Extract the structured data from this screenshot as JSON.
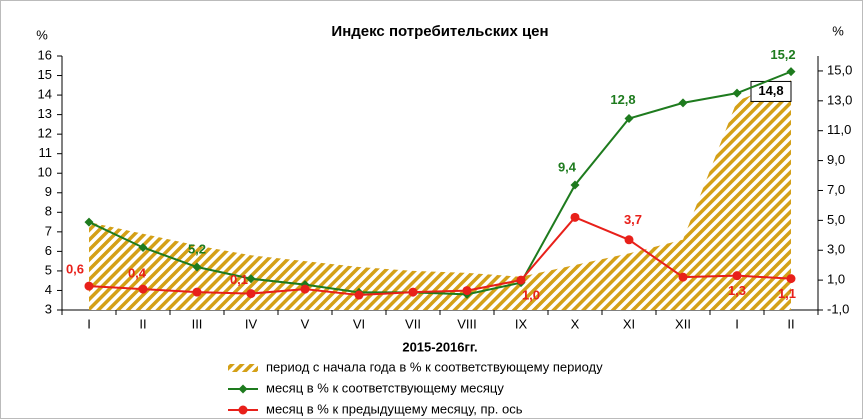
{
  "chart_data": {
    "type": "line",
    "title": "Индекс потребительских цен",
    "y_label": "%",
    "y2_label": "%",
    "x_label": "2015-2016гг.",
    "categories": [
      "I",
      "II",
      "III",
      "IV",
      "V",
      "VI",
      "VII",
      "VIII",
      "IX",
      "X",
      "XI",
      "XII",
      "I",
      "II"
    ],
    "ylim": [
      3,
      16
    ],
    "yticks": [
      3,
      4,
      5,
      6,
      7,
      8,
      9,
      10,
      11,
      12,
      13,
      14,
      15,
      16
    ],
    "y2lim": [
      -1,
      16
    ],
    "y2ticks": [
      {
        "value": -1,
        "label": "-1,0"
      },
      {
        "value": 1,
        "label": "1,0"
      },
      {
        "value": 3,
        "label": "3,0"
      },
      {
        "value": 5,
        "label": "5,0"
      },
      {
        "value": 7,
        "label": "7,0"
      },
      {
        "value": 9,
        "label": "9,0"
      },
      {
        "value": 11,
        "label": "11,0"
      },
      {
        "value": 13,
        "label": "13,0"
      },
      {
        "value": 15,
        "label": "15,0"
      }
    ],
    "legend": "bottom",
    "series": [
      {
        "name": "период с начала года в % к соответствующему периоду",
        "type": "area",
        "color": "#d4a017",
        "values": [
          7.5,
          6.9,
          6.3,
          5.8,
          5.5,
          5.2,
          5.0,
          4.9,
          4.7,
          5.3,
          5.9,
          6.6,
          13.7,
          14.8
        ],
        "value_labels": [
          null,
          null,
          null,
          null,
          null,
          null,
          null,
          null,
          null,
          null,
          null,
          null,
          null,
          "14,8"
        ]
      },
      {
        "name": "месяц в % к соответствующему месяцу",
        "type": "line",
        "marker": "diamond",
        "color": "#1e7b1e",
        "values": [
          7.5,
          6.2,
          5.2,
          4.6,
          4.3,
          3.9,
          3.9,
          3.8,
          4.4,
          9.4,
          12.8,
          13.6,
          14.1,
          15.2
        ],
        "value_labels": [
          null,
          null,
          "5,2",
          null,
          null,
          null,
          null,
          null,
          null,
          "9,4",
          "12,8",
          null,
          null,
          "15,2"
        ]
      },
      {
        "name": "месяц в % к предыдущему месяцу, пр. ось",
        "type": "line",
        "marker": "circle",
        "color": "#e8201a",
        "axis": "y2",
        "values": [
          0.6,
          0.4,
          0.2,
          0.1,
          0.4,
          0.0,
          0.2,
          0.3,
          1.0,
          5.2,
          3.7,
          1.2,
          1.3,
          1.1
        ],
        "value_labels": [
          "0,6",
          "0,4",
          null,
          "0,1",
          null,
          null,
          null,
          null,
          "1,0",
          null,
          "3,7",
          null,
          "1,3",
          "1,1"
        ]
      }
    ]
  }
}
